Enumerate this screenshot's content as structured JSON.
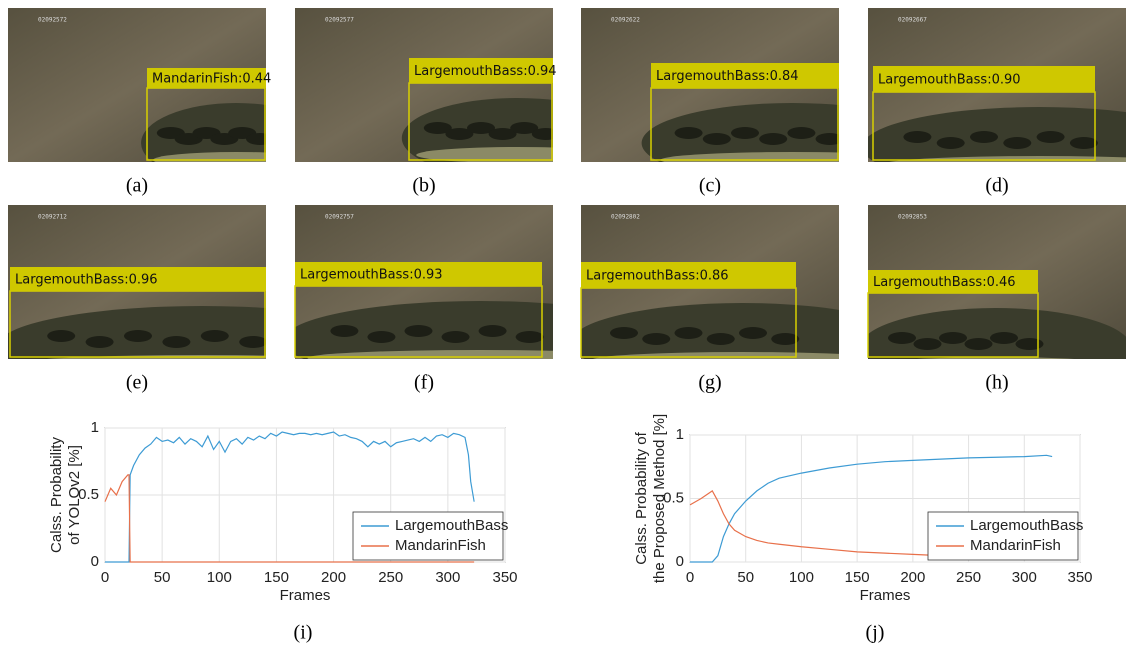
{
  "images": [
    {
      "frame_id": "02092572",
      "detection": "MandarinFish:0.44",
      "caption": "(a)"
    },
    {
      "frame_id": "02092577",
      "detection": "LargemouthBass:0.94",
      "caption": "(b)"
    },
    {
      "frame_id": "02092622",
      "detection": "LargemouthBass:0.84",
      "caption": "(c)"
    },
    {
      "frame_id": "02092667",
      "detection": "LargemouthBass:0.90",
      "caption": "(d)"
    },
    {
      "frame_id": "02092712",
      "detection": "LargemouthBass:0.96",
      "caption": "(e)"
    },
    {
      "frame_id": "02092757",
      "detection": "LargemouthBass:0.93",
      "caption": "(f)"
    },
    {
      "frame_id": "02092802",
      "detection": "LargemouthBass:0.86",
      "caption": "(g)"
    },
    {
      "frame_id": "02092853",
      "detection": "LargemouthBass:0.46",
      "caption": "(h)"
    }
  ],
  "chart_data": [
    {
      "type": "line",
      "caption": "(i)",
      "xlabel": "Frames",
      "ylabel": [
        "Calss. Probability",
        "of YOLOv2 [%]"
      ],
      "x": [
        0,
        5,
        10,
        15,
        20,
        21,
        22,
        25,
        30,
        35,
        40,
        45,
        50,
        55,
        60,
        65,
        70,
        75,
        80,
        85,
        90,
        95,
        100,
        105,
        110,
        115,
        120,
        125,
        130,
        135,
        140,
        145,
        150,
        155,
        160,
        165,
        170,
        175,
        180,
        185,
        190,
        195,
        200,
        205,
        210,
        215,
        220,
        225,
        230,
        235,
        240,
        245,
        250,
        255,
        260,
        265,
        270,
        275,
        280,
        285,
        290,
        295,
        300,
        305,
        310,
        315,
        318,
        320,
        323
      ],
      "series": [
        {
          "name": "LargemouthBass",
          "color": "#3d9bd4",
          "values": [
            0,
            0,
            0,
            0,
            0,
            0,
            0.65,
            0.72,
            0.8,
            0.85,
            0.88,
            0.93,
            0.9,
            0.91,
            0.89,
            0.93,
            0.88,
            0.92,
            0.9,
            0.86,
            0.94,
            0.84,
            0.9,
            0.82,
            0.9,
            0.92,
            0.88,
            0.93,
            0.91,
            0.94,
            0.92,
            0.96,
            0.94,
            0.97,
            0.96,
            0.95,
            0.96,
            0.96,
            0.95,
            0.96,
            0.95,
            0.96,
            0.97,
            0.94,
            0.95,
            0.93,
            0.92,
            0.9,
            0.86,
            0.9,
            0.88,
            0.9,
            0.86,
            0.89,
            0.9,
            0.91,
            0.92,
            0.9,
            0.93,
            0.9,
            0.94,
            0.95,
            0.93,
            0.96,
            0.95,
            0.93,
            0.8,
            0.6,
            0.45
          ]
        },
        {
          "name": "MandarinFish",
          "color": "#e8704a",
          "values": [
            0.45,
            0.55,
            0.5,
            0.6,
            0.65,
            0.65,
            0,
            0,
            0,
            0,
            0,
            0,
            0,
            0,
            0,
            0,
            0,
            0,
            0,
            0,
            0,
            0,
            0,
            0,
            0,
            0,
            0,
            0,
            0,
            0,
            0,
            0,
            0,
            0,
            0,
            0,
            0,
            0,
            0,
            0,
            0,
            0,
            0,
            0,
            0,
            0,
            0,
            0,
            0,
            0,
            0,
            0,
            0,
            0,
            0,
            0,
            0,
            0,
            0,
            0,
            0,
            0,
            0,
            0,
            0,
            0,
            0,
            0,
            0
          ]
        }
      ],
      "xlim": [
        0,
        350
      ],
      "xticks": [
        0,
        50,
        100,
        150,
        200,
        250,
        300,
        350
      ],
      "ylim": [
        0,
        1
      ],
      "yticks": [
        0,
        0.5,
        1
      ],
      "grid": true,
      "legend": "lower-right"
    },
    {
      "type": "line",
      "caption": "(j)",
      "xlabel": "Frames",
      "ylabel": [
        "Calss. Probability of",
        "the Proposed Method [%]"
      ],
      "x": [
        0,
        10,
        20,
        25,
        30,
        35,
        40,
        50,
        60,
        70,
        80,
        100,
        125,
        150,
        175,
        200,
        225,
        250,
        275,
        300,
        320,
        325
      ],
      "series": [
        {
          "name": "LargemouthBass",
          "color": "#3d9bd4",
          "values": [
            0,
            0,
            0,
            0.05,
            0.2,
            0.3,
            0.38,
            0.48,
            0.56,
            0.62,
            0.66,
            0.7,
            0.74,
            0.77,
            0.79,
            0.8,
            0.81,
            0.82,
            0.825,
            0.83,
            0.84,
            0.83
          ]
        },
        {
          "name": "MandarinFish",
          "color": "#e8704a",
          "values": [
            0.45,
            0.5,
            0.56,
            0.48,
            0.38,
            0.3,
            0.25,
            0.2,
            0.17,
            0.15,
            0.14,
            0.12,
            0.1,
            0.08,
            0.07,
            0.06,
            0.05,
            0.05,
            0.045,
            0.04,
            0.04,
            0.04
          ]
        }
      ],
      "xlim": [
        0,
        350
      ],
      "xticks": [
        0,
        50,
        100,
        150,
        200,
        250,
        300,
        350
      ],
      "ylim": [
        0,
        1
      ],
      "yticks": [
        0,
        0.5,
        1
      ],
      "grid": true,
      "legend": "lower-right"
    }
  ]
}
